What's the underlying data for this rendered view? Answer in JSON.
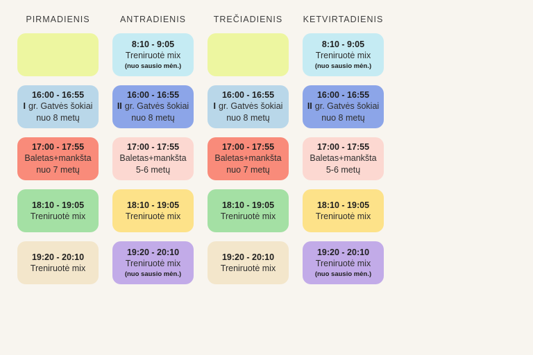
{
  "page": {
    "background_color": "#f8f5ef",
    "text_color": "#2e2e2e"
  },
  "columns": [
    {
      "day": "PIRMADIENIS",
      "cards": [
        {
          "bg": "#edf6a0"
        },
        {
          "bg": "#b9d7e9",
          "time": "16:00 - 16:55",
          "prefix": "I",
          "title": "gr. Gatvės šokiai",
          "subtitle": "nuo 8 metų"
        },
        {
          "bg": "#f98b7a",
          "time": "17:00 - 17:55",
          "title": "Baletas+mankšta",
          "subtitle": "nuo 7 metų"
        },
        {
          "bg": "#a4e0a4",
          "time": "18:10 - 19:05",
          "title": "Treniruotė mix"
        },
        {
          "bg": "#f3e6cb",
          "time": "19:20 - 20:10",
          "title": "Treniruotė mix"
        }
      ]
    },
    {
      "day": "ANTRADIENIS",
      "cards": [
        {
          "bg": "#c5ebf3",
          "time": "8:10 - 9:05",
          "title": "Treniruotė mix",
          "note": "(nuo sausio mėn.)"
        },
        {
          "bg": "#8ca5e8",
          "time": "16:00 - 16:55",
          "prefix": "II",
          "title": "gr. Gatvės šokiai",
          "subtitle": "nuo 8 metų"
        },
        {
          "bg": "#fcd8d1",
          "time": "17:00 - 17:55",
          "title": "Baletas+mankšta",
          "subtitle": "5-6 metų"
        },
        {
          "bg": "#fde289",
          "time": "18:10 - 19:05",
          "title": "Treniruotė mix"
        },
        {
          "bg": "#c2abe8",
          "time": "19:20 - 20:10",
          "title": "Treniruotė mix",
          "note": "(nuo sausio mėn.)"
        }
      ]
    },
    {
      "day": "TREČIADIENIS",
      "cards": [
        {
          "bg": "#edf6a0"
        },
        {
          "bg": "#b9d7e9",
          "time": "16:00 - 16:55",
          "prefix": "I",
          "title": "gr. Gatvės šokiai",
          "subtitle": "nuo 8 metų"
        },
        {
          "bg": "#f98b7a",
          "time": "17:00 - 17:55",
          "title": "Baletas+mankšta",
          "subtitle": "nuo 7 metų"
        },
        {
          "bg": "#a4e0a4",
          "time": "18:10 - 19:05",
          "title": "Treniruotė mix"
        },
        {
          "bg": "#f3e6cb",
          "time": "19:20 - 20:10",
          "title": "Treniruotė mix"
        }
      ]
    },
    {
      "day": "KETVIRTADIENIS",
      "cards": [
        {
          "bg": "#c5ebf3",
          "time": "8:10 - 9:05",
          "title": "Treniruotė mix",
          "note": "(nuo sausio mėn.)"
        },
        {
          "bg": "#8ca5e8",
          "time": "16:00 - 16:55",
          "prefix": "II",
          "title": "gr. Gatvės šokiai",
          "subtitle": "nuo 8 metų"
        },
        {
          "bg": "#fcd8d1",
          "time": "17:00 - 17:55",
          "title": "Baletas+mankšta",
          "subtitle": "5-6 metų"
        },
        {
          "bg": "#fde289",
          "time": "18:10 - 19:05",
          "title": "Treniruotė mix"
        },
        {
          "bg": "#c2abe8",
          "time": "19:20 - 20:10",
          "title": "Treniruotė mix",
          "note": "(nuo sausio mėn.)"
        }
      ]
    }
  ]
}
